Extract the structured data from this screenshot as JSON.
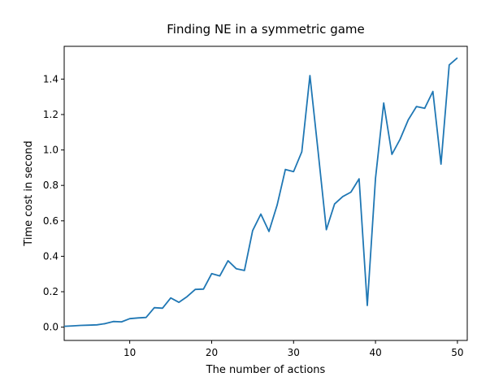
{
  "chart_data": {
    "type": "line",
    "title": "Finding NE in a symmetric game",
    "xlabel": "The number of actions",
    "ylabel": "Time cost in second",
    "xlim": [
      2,
      51.2
    ],
    "ylim": [
      -0.075,
      1.585
    ],
    "xticks": [
      10,
      20,
      30,
      40,
      50
    ],
    "yticks": [
      0.0,
      0.2,
      0.4,
      0.6,
      0.8,
      1.0,
      1.2,
      1.4
    ],
    "ytick_labels": [
      "0.0",
      "0.2",
      "0.4",
      "0.6",
      "0.8",
      "1.0",
      "1.2",
      "1.4"
    ],
    "grid": false,
    "color": "#1f77b4",
    "series": [
      {
        "x": [
          2,
          3,
          4,
          5,
          6,
          7,
          8,
          9,
          10,
          11,
          12,
          13,
          14,
          15,
          16,
          17,
          18,
          19,
          20,
          21,
          22,
          23,
          24,
          25,
          26,
          27,
          28,
          29,
          30,
          31,
          32,
          33,
          34,
          35,
          36,
          37,
          38,
          39,
          40,
          41,
          42,
          43,
          44,
          45,
          46,
          47,
          48,
          49,
          50
        ],
        "values": [
          0.005,
          0.007,
          0.01,
          0.011,
          0.013,
          0.02,
          0.032,
          0.03,
          0.048,
          0.052,
          0.055,
          0.11,
          0.107,
          0.165,
          0.14,
          0.172,
          0.213,
          0.215,
          0.302,
          0.289,
          0.375,
          0.33,
          0.32,
          0.545,
          0.638,
          0.54,
          0.69,
          0.89,
          0.878,
          0.99,
          1.42,
          0.99,
          0.55,
          0.695,
          0.737,
          0.762,
          0.837,
          0.122,
          0.84,
          1.265,
          0.975,
          1.06,
          1.17,
          1.245,
          1.235,
          1.33,
          0.92,
          1.48,
          1.52
        ]
      }
    ]
  }
}
